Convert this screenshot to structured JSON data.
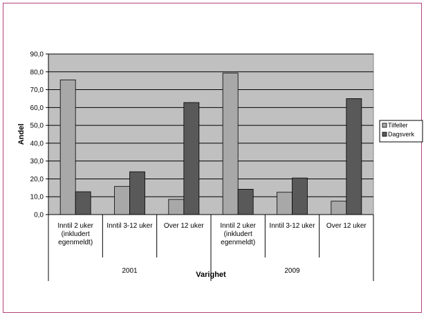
{
  "chart_data": {
    "type": "bar",
    "title": "",
    "xlabel": "Varighet",
    "ylabel": "Andel",
    "ylim": [
      0,
      90
    ],
    "yticks": [
      "0,0",
      "10,0",
      "20,0",
      "30,0",
      "40,0",
      "50,0",
      "60,0",
      "70,0",
      "80,0",
      "90,0"
    ],
    "groups": [
      {
        "label": "2001",
        "categories": [
          [
            "Inntil 2 uker",
            "(inkludert",
            "egenmeldt)"
          ],
          [
            "Inntil 3-12 uker"
          ],
          [
            "Over 12 uker"
          ]
        ]
      },
      {
        "label": "2009",
        "categories": [
          [
            "Inntil 2 uker",
            "(inkludert",
            "egenmeldt)"
          ],
          [
            "Inntil 3-12 uker"
          ],
          [
            "Over 12 uker"
          ]
        ]
      }
    ],
    "series": [
      {
        "name": "Tilfeller",
        "color": "#a8a8a8",
        "values": [
          75.5,
          15.8,
          8.5,
          79.3,
          12.5,
          7.5
        ]
      },
      {
        "name": "Dagsverk",
        "color": "#595959",
        "values": [
          12.8,
          24.0,
          62.8,
          14.2,
          20.5,
          65.0
        ]
      }
    ],
    "grid": true,
    "legend": "right",
    "plot_background": "#c0c0c0"
  }
}
